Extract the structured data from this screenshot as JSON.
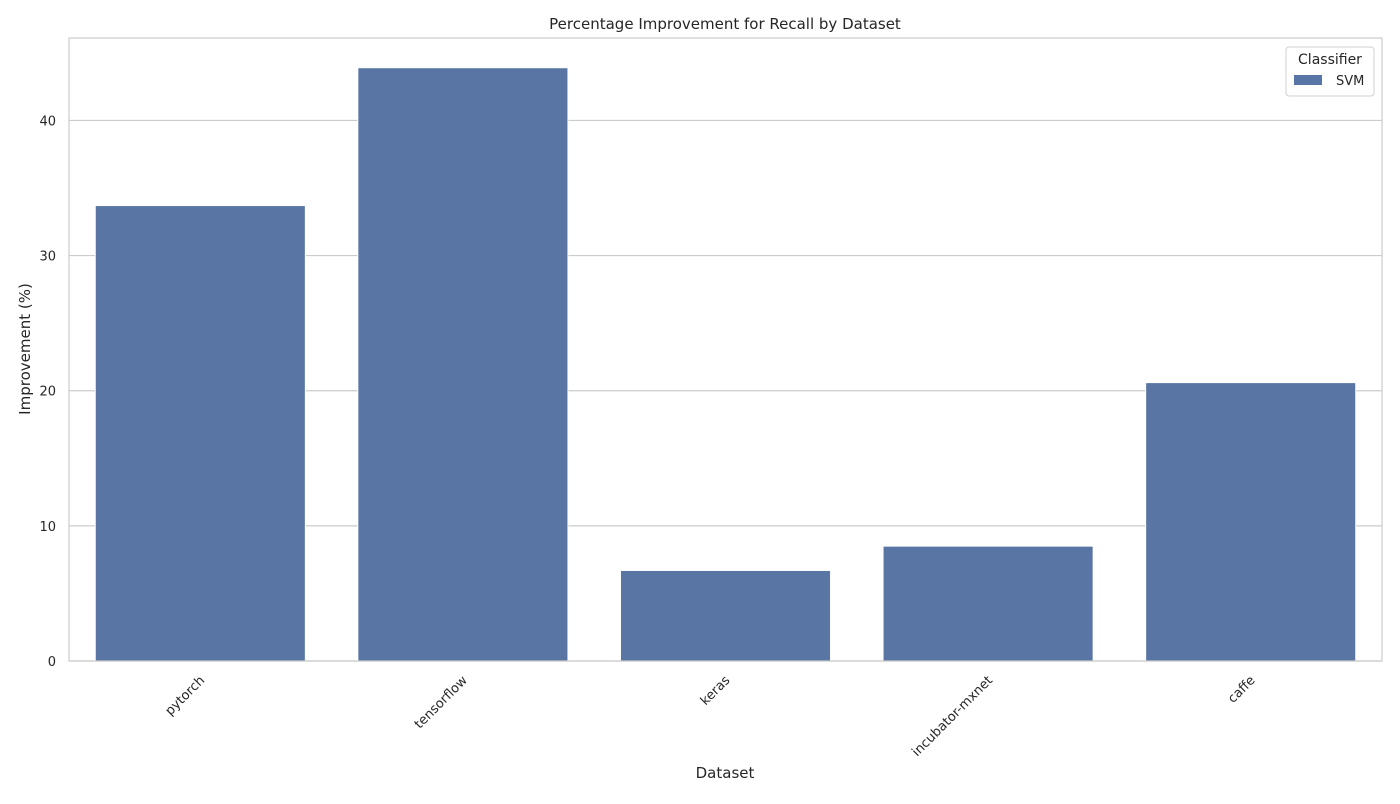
{
  "chart_data": {
    "type": "bar",
    "title": "Percentage Improvement for Recall by Dataset",
    "xlabel": "Dataset",
    "ylabel": "Improvement (%)",
    "categories": [
      "pytorch",
      "tensorflow",
      "keras",
      "incubator-mxnet",
      "caffe"
    ],
    "series": [
      {
        "name": "SVM",
        "values": [
          33.7,
          43.9,
          6.7,
          8.5,
          20.6
        ],
        "color": "#5875a4"
      }
    ],
    "ylim": [
      0,
      46.1
    ],
    "yticks": [
      0,
      10,
      20,
      30,
      40
    ],
    "grid": true,
    "legend": {
      "title": "Classifier",
      "placement": "top-right"
    }
  }
}
